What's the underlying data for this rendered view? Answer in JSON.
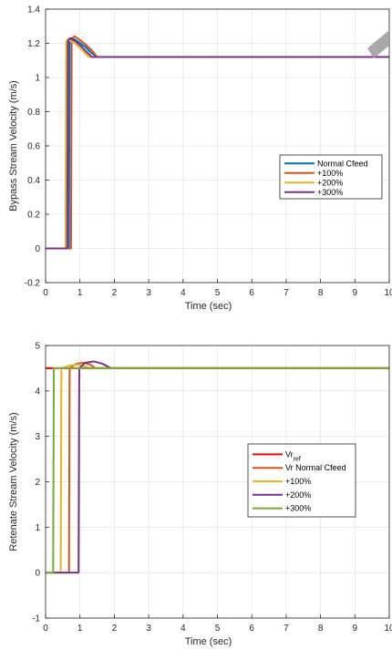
{
  "chart_data": [
    {
      "type": "line",
      "xlabel": "Time (sec)",
      "ylabel": "Bypass Stream Velocity (m/s)",
      "xlim": [
        0,
        10
      ],
      "ylim": [
        -0.2,
        1.4
      ],
      "xticks": [
        "0",
        "1",
        "2",
        "3",
        "4",
        "5",
        "6",
        "7",
        "8",
        "9",
        "10"
      ],
      "yticks": [
        "-0.2",
        "0",
        "0.2",
        "0.4",
        "0.6",
        "0.8",
        "1",
        "1.2",
        "1.4"
      ],
      "grid": true,
      "legend_position": "middle-right",
      "series": [
        {
          "name": "Normal Cfeed",
          "color": "#0072BD",
          "x": [
            0,
            0.68,
            0.7,
            0.78,
            0.95,
            1.15,
            1.3,
            1.42,
            1.46,
            10
          ],
          "y": [
            0,
            0,
            1.22,
            1.23,
            1.21,
            1.18,
            1.15,
            1.13,
            1.12,
            1.12
          ]
        },
        {
          "name": "+100%",
          "color": "#D95319",
          "x": [
            0,
            0.74,
            0.76,
            0.85,
            1.0,
            1.18,
            1.34,
            1.46,
            1.5,
            10
          ],
          "y": [
            0,
            0,
            1.23,
            1.24,
            1.22,
            1.19,
            1.16,
            1.13,
            1.12,
            1.12
          ]
        },
        {
          "name": "+200%",
          "color": "#EDB120",
          "x": [
            0,
            0.58,
            0.6,
            0.68,
            0.85,
            1.02,
            1.16,
            1.26,
            1.3,
            10
          ],
          "y": [
            0,
            0,
            1.21,
            1.22,
            1.2,
            1.17,
            1.14,
            1.12,
            1.12,
            1.12
          ]
        },
        {
          "name": "+300%",
          "color": "#7E2F8E",
          "x": [
            0,
            0.63,
            0.65,
            0.72,
            0.88,
            1.05,
            1.19,
            1.3,
            1.34,
            10
          ],
          "y": [
            0,
            0,
            1.22,
            1.23,
            1.21,
            1.18,
            1.15,
            1.13,
            1.12,
            1.12
          ]
        }
      ]
    },
    {
      "type": "line",
      "xlabel": "Time (sec)",
      "ylabel": "Retenate Stream Velocity (m/s)",
      "xlim": [
        0,
        10
      ],
      "ylim": [
        -1,
        5
      ],
      "xticks": [
        "0",
        "1",
        "2",
        "3",
        "4",
        "5",
        "6",
        "7",
        "8",
        "9",
        "10"
      ],
      "yticks": [
        "-1",
        "0",
        "1",
        "2",
        "3",
        "4",
        "5"
      ],
      "grid": true,
      "legend_position": "middle-right",
      "series": [
        {
          "name": "Vr",
          "name_subscript": "ref",
          "color": "#FF0000",
          "x": [
            0,
            10
          ],
          "y": [
            4.5,
            4.5
          ]
        },
        {
          "name": "Vr Normal Cfeed",
          "color": "#D95319",
          "x": [
            0,
            0.68,
            0.7,
            0.9,
            1.1,
            1.3,
            1.45,
            10
          ],
          "y": [
            0,
            0,
            4.5,
            4.6,
            4.62,
            4.58,
            4.5,
            4.5
          ]
        },
        {
          "name": "+100%",
          "color": "#EDB120",
          "x": [
            0,
            0.44,
            0.46,
            0.7,
            0.95,
            1.15,
            1.3,
            10
          ],
          "y": [
            0,
            0,
            4.5,
            4.56,
            4.58,
            4.54,
            4.5,
            4.5
          ]
        },
        {
          "name": "+200%",
          "color": "#7E2F8E",
          "x": [
            0,
            0.96,
            0.98,
            1.15,
            1.4,
            1.65,
            1.9,
            10
          ],
          "y": [
            0,
            0,
            4.5,
            4.62,
            4.65,
            4.6,
            4.5,
            4.5
          ]
        },
        {
          "name": "+300%",
          "color": "#77AC30",
          "x": [
            0,
            0.22,
            0.24,
            10
          ],
          "y": [
            0,
            0,
            4.5,
            4.5
          ]
        }
      ]
    }
  ]
}
